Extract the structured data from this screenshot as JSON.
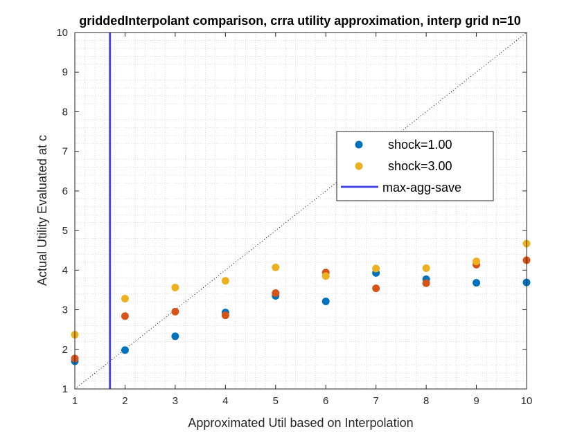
{
  "chart_data": {
    "type": "scatter",
    "title": "griddedInterpolant comparison, crra utility approximation, interp grid n=10",
    "xlabel": "Approximated Util based on  Interpolation",
    "ylabel": "Actual Utility Evaluated at c",
    "xlim": [
      1,
      10
    ],
    "ylim": [
      1,
      10
    ],
    "xticks": [
      "1",
      "2",
      "3",
      "4",
      "5",
      "6",
      "7",
      "8",
      "9",
      "10"
    ],
    "yticks": [
      "1",
      "2",
      "3",
      "4",
      "5",
      "6",
      "7",
      "8",
      "9",
      "10"
    ],
    "grid": "minor dotted",
    "reference_line": {
      "style": "dotted",
      "from": [
        1,
        1
      ],
      "to": [
        10,
        10
      ],
      "color": "#000000"
    },
    "vertical_line": {
      "name": "max-agg-save",
      "x": 1.7,
      "color": "#4747E8"
    },
    "series": [
      {
        "name": "shock=1.00",
        "color": "#0072BD",
        "x": [
          1,
          2,
          3,
          4,
          5,
          6,
          7,
          8,
          9,
          10
        ],
        "y": [
          1.7,
          1.98,
          2.33,
          2.93,
          3.35,
          3.21,
          3.93,
          3.77,
          3.68,
          3.69
        ]
      },
      {
        "name": "",
        "color": "#D95319",
        "x": [
          1,
          2,
          3,
          4,
          5,
          6,
          7,
          8,
          9,
          10
        ],
        "y": [
          1.77,
          2.84,
          2.95,
          2.86,
          3.42,
          3.94,
          3.54,
          3.67,
          4.14,
          4.25
        ]
      },
      {
        "name": "shock=3.00",
        "color": "#EDB120",
        "x": [
          1,
          2,
          3,
          4,
          5,
          6,
          7,
          8,
          9,
          10
        ],
        "y": [
          2.37,
          3.28,
          3.56,
          3.73,
          4.07,
          3.85,
          4.04,
          4.05,
          4.22,
          4.67
        ]
      }
    ],
    "legend": {
      "placement": "inside-right",
      "entries": [
        {
          "label": "shock=1.00",
          "kind": "marker",
          "color": "#0072BD"
        },
        {
          "label": "shock=3.00",
          "kind": "marker",
          "color": "#EDB120"
        },
        {
          "label": "max-agg-save",
          "kind": "line",
          "color": "#4747E8"
        }
      ]
    }
  }
}
